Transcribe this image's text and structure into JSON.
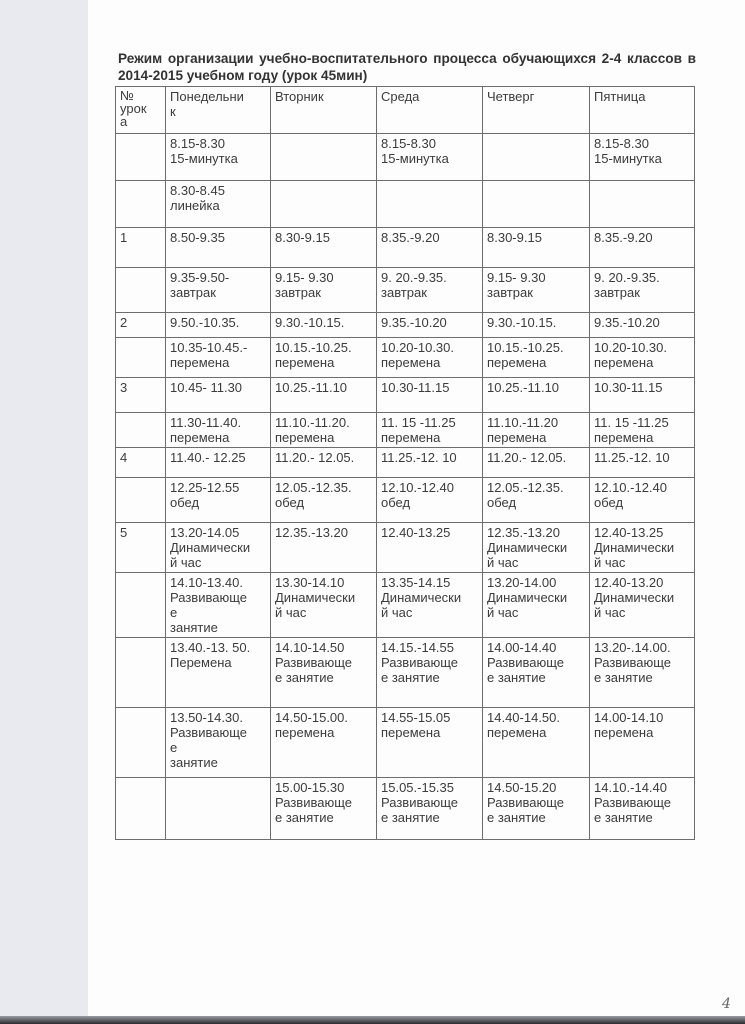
{
  "document": {
    "title": "Режим организации учебно-воспитательного процесса обучающихся 2-4 классов в 2014-2015 учебном году   (урок 45мин)",
    "page_number": "4"
  },
  "table": {
    "headers": [
      "№\nурок\nа",
      "Понедельни\nк",
      "Вторник",
      "Среда",
      "Четверг",
      "Пятница"
    ],
    "rows": [
      [
        "",
        "8.15-8.30\n15-минутка",
        "",
        "8.15-8.30\n15-минутка",
        "",
        "8.15-8.30\n15-минутка"
      ],
      [
        "",
        "8.30-8.45\nлинейка",
        "",
        "",
        "",
        ""
      ],
      [
        "1",
        "8.50-9.35",
        "8.30-9.15",
        "8.35.-9.20",
        "8.30-9.15",
        "8.35.-9.20"
      ],
      [
        "",
        "9.35-9.50-\nзавтрак",
        "9.15- 9.30\nзавтрак",
        "9. 20.-9.35.\nзавтрак",
        "9.15- 9.30\nзавтрак",
        "9. 20.-9.35.\nзавтрак"
      ],
      [
        "2",
        "9.50.-10.35.",
        "9.30.-10.15.",
        "9.35.-10.20",
        "9.30.-10.15.",
        "9.35.-10.20"
      ],
      [
        "",
        "10.35-10.45.-\nперемена",
        "10.15.-10.25.\nперемена",
        "10.20-10.30.\nперемена",
        "10.15.-10.25.\nперемена",
        "10.20-10.30.\nперемена"
      ],
      [
        "3",
        "10.45- 11.30",
        "10.25.-11.10",
        "10.30-11.15",
        "10.25.-11.10",
        "10.30-11.15"
      ],
      [
        "",
        "11.30-11.40.\nперемена",
        "11.10.-11.20.\nперемена",
        "11. 15 -11.25\nперемена",
        "11.10.-11.20\nперемена",
        "11. 15 -11.25\nперемена"
      ],
      [
        "4",
        "11.40.- 12.25",
        "11.20.- 12.05.",
        "11.25.-12. 10",
        "11.20.- 12.05.",
        "11.25.-12. 10"
      ],
      [
        "",
        "12.25-12.55\nобед",
        "12.05.-12.35.\n обед",
        "12.10.-12.40\nобед",
        "12.05.-12.35.\n обед",
        "12.10.-12.40\nобед"
      ],
      [
        "5",
        "13.20-14.05\nДинамически\nй час",
        "12.35.-13.20",
        "12.40-13.25",
        "12.35.-13.20\nДинамически\nй час",
        "12.40-13.25\nДинамически\nй час"
      ],
      [
        "",
        "14.10-13.40.\nРазвивающе\nе\nзанятие",
        "13.30-14.10\nДинамически\nй час",
        "13.35-14.15\nДинамически\nй час",
        "13.20-14.00\nДинамически\nй час",
        "12.40-13.20\nДинамически\nй час"
      ],
      [
        "",
        "13.40.-13. 50.\nПеремена",
        "14.10-14.50\nРазвивающе\nе занятие",
        "14.15.-14.55\nРазвивающе\nе занятие",
        "14.00-14.40\nРазвивающе\nе занятие",
        "13.20-.14.00.\nРазвивающе\nе занятие"
      ],
      [
        "",
        "13.50-14.30.\nРазвивающе\nе\nзанятие",
        "14.50-15.00.\nперемена",
        "14.55-15.05\nперемена",
        "14.40-14.50.\nперемена",
        "14.00-14.10\nперемена"
      ],
      [
        "",
        "",
        "15.00-15.30\nРазвивающе\nе занятие",
        "15.05.-15.35\nРазвивающе\nе занятие",
        "14.50-15.20\nРазвивающе\nе занятие",
        "14.10.-14.40\nРазвивающе\nе занятие"
      ]
    ]
  }
}
